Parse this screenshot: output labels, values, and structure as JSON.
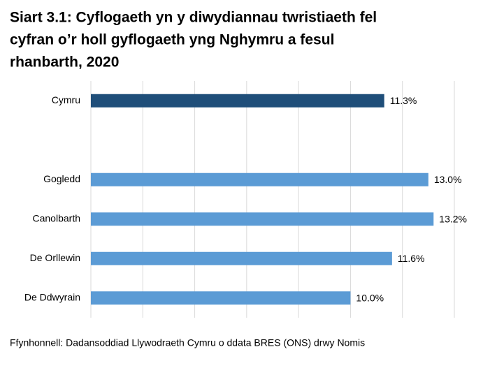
{
  "chart_data": {
    "type": "bar",
    "orientation": "horizontal",
    "title_lines": [
      "Siart 3.1: Cyflogaeth yn y diwydiannau twristiaeth fel",
      "cyfran o’r holl gyflogaeth yng Nghymru a fesul",
      "rhanbarth, 2020"
    ],
    "categories": [
      "Cymru",
      null,
      "Gogledd",
      "Canolbarth",
      "De Orllewin",
      "De Ddwyrain"
    ],
    "values": [
      11.3,
      null,
      13.0,
      13.2,
      11.6,
      10.0
    ],
    "value_labels": [
      "11.3%",
      null,
      "13.0%",
      "13.2%",
      "11.6%",
      "10.0%"
    ],
    "colors": [
      "#1f4e79",
      null,
      "#5b9bd5",
      "#5b9bd5",
      "#5b9bd5",
      "#5b9bd5"
    ],
    "xlim": [
      0,
      14
    ],
    "xticks": [
      0,
      2,
      4,
      6,
      8,
      10,
      12,
      14
    ],
    "grid": true,
    "source": "Ffynhonnell: Dadansoddiad Llywodraeth Cymru o ddata BRES (ONS) drwy Nomis"
  }
}
